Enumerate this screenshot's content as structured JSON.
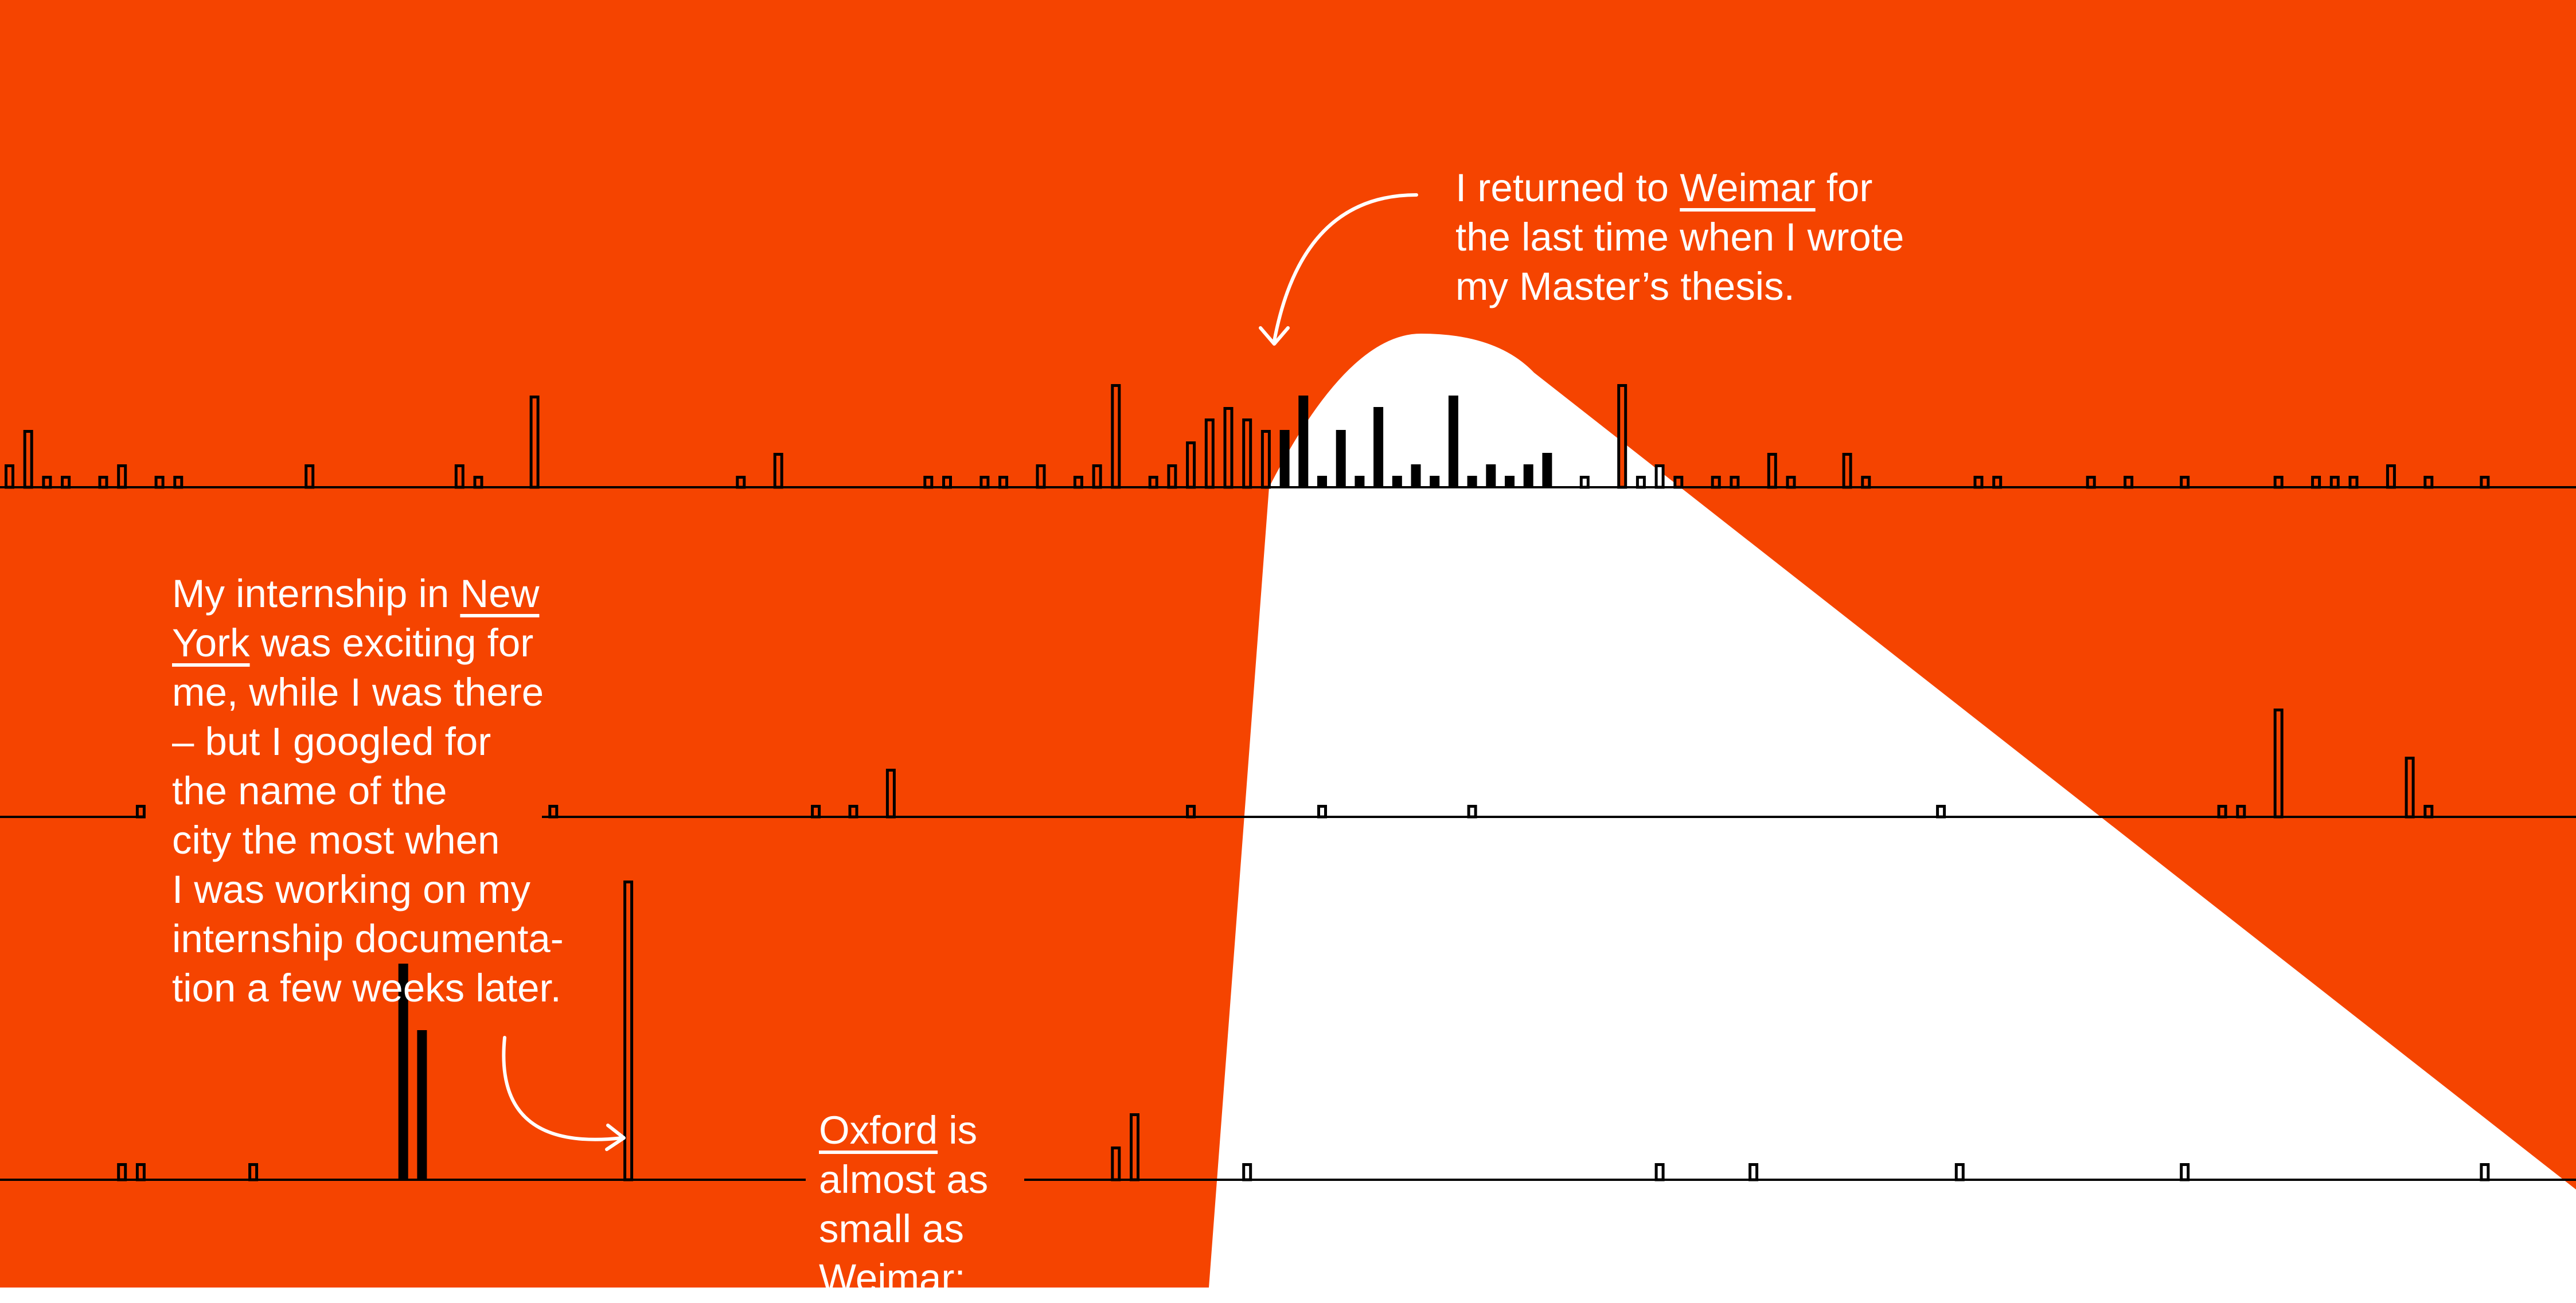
{
  "colors": {
    "background": "#F54400",
    "spotlight": "#FFFFFF",
    "bars": "#000000",
    "text": "#FFFFFF"
  },
  "annotations": {
    "weimar": {
      "lines": [
        [
          "I returned to ",
          "Weimar",
          " for"
        ],
        [
          "the last time when I wrote"
        ],
        [
          "my Master’s thesis."
        ]
      ]
    },
    "new_york": {
      "lines": [
        [
          "My internship in ",
          "New"
        ],
        [
          "",
          "York",
          " was exciting for"
        ],
        [
          "me, while I was there"
        ],
        [
          "– but I googled for"
        ],
        [
          "the name of the"
        ],
        [
          "city the most when"
        ],
        [
          "I was working on my"
        ],
        [
          "internship documenta-"
        ],
        [
          "tion a few weeks later."
        ]
      ]
    },
    "oxford": {
      "lines": [
        [
          "",
          "Oxford",
          " is"
        ],
        [
          "almost as"
        ],
        [
          "small as"
        ],
        [
          "Weimar;"
        ]
      ]
    }
  },
  "chart_data": {
    "type": "bar",
    "series": [
      {
        "values": [
          2,
          5,
          1,
          1,
          0,
          1,
          2,
          0,
          1,
          1,
          0,
          0,
          0,
          0,
          0,
          0,
          2,
          0,
          0,
          0,
          0,
          0,
          0,
          0,
          2,
          1,
          0,
          0,
          8,
          0,
          0,
          0,
          0,
          0,
          0,
          0,
          0,
          0,
          0,
          1,
          0,
          3,
          0,
          0,
          0,
          0,
          0,
          0,
          0,
          1,
          1,
          0,
          1,
          1,
          0,
          2,
          0,
          1,
          2,
          9,
          0,
          1,
          2,
          4,
          6,
          7,
          6,
          5,
          5,
          8,
          1,
          5,
          1,
          7,
          1,
          2,
          1,
          8,
          1,
          2,
          1,
          2,
          3,
          0,
          1,
          0,
          9,
          1,
          2,
          1,
          0,
          1,
          1,
          0,
          3,
          1,
          0,
          0,
          3,
          1,
          0,
          0,
          0,
          0,
          0,
          1,
          1,
          0,
          0,
          0,
          0,
          1,
          0,
          1,
          0,
          0,
          1,
          0,
          0,
          0,
          0,
          1,
          0,
          1,
          1,
          1,
          0,
          2,
          0,
          1,
          0,
          0,
          1
        ]
      },
      {
        "values": [
          0,
          0,
          0,
          0,
          0,
          0,
          0,
          1,
          0,
          0,
          0,
          0,
          0,
          0,
          0,
          0,
          0,
          0,
          0,
          0,
          0,
          0,
          0,
          0,
          0,
          0,
          0,
          0,
          0,
          1,
          0,
          0,
          0,
          0,
          0,
          0,
          0,
          0,
          0,
          0,
          0,
          0,
          0,
          1,
          0,
          1,
          0,
          4,
          0,
          0,
          0,
          0,
          0,
          0,
          0,
          0,
          0,
          0,
          0,
          0,
          0,
          0,
          0,
          1,
          0,
          0,
          0,
          0,
          0,
          0,
          1,
          0,
          0,
          0,
          0,
          0,
          0,
          0,
          1,
          0,
          0,
          0,
          0,
          0,
          0,
          0,
          0,
          0,
          0,
          0,
          0,
          0,
          0,
          0,
          0,
          0,
          0,
          0,
          0,
          0,
          0,
          0,
          0,
          1,
          0,
          0,
          0,
          0,
          0,
          0,
          0,
          0,
          0,
          0,
          0,
          0,
          0,
          0,
          1,
          1,
          0,
          9,
          0,
          0,
          0,
          0,
          0,
          0,
          5,
          1,
          0,
          0,
          0
        ]
      },
      {
        "values": [
          0,
          0,
          0,
          0,
          0,
          0,
          1,
          1,
          0,
          0,
          0,
          0,
          0,
          1,
          0,
          0,
          0,
          0,
          0,
          0,
          0,
          13,
          9,
          0,
          0,
          0,
          0,
          0,
          0,
          0,
          0,
          0,
          0,
          18,
          0,
          0,
          0,
          0,
          0,
          0,
          0,
          0,
          0,
          0,
          0,
          0,
          0,
          0,
          0,
          0,
          0,
          0,
          0,
          0,
          0,
          0,
          0,
          0,
          0,
          2,
          4,
          0,
          0,
          0,
          0,
          0,
          1,
          0,
          0,
          0,
          0,
          0,
          0,
          0,
          0,
          0,
          0,
          0,
          0,
          0,
          0,
          0,
          0,
          0,
          0,
          0,
          0,
          0,
          1,
          0,
          0,
          0,
          0,
          1,
          0,
          0,
          0,
          0,
          0,
          0,
          0,
          0,
          0,
          0,
          1,
          0,
          0,
          0,
          0,
          0,
          0,
          0,
          0,
          0,
          0,
          0,
          1,
          0,
          0,
          0,
          0,
          0,
          0,
          0,
          0,
          0,
          0,
          0,
          0,
          0,
          0,
          0,
          1
        ]
      }
    ]
  }
}
